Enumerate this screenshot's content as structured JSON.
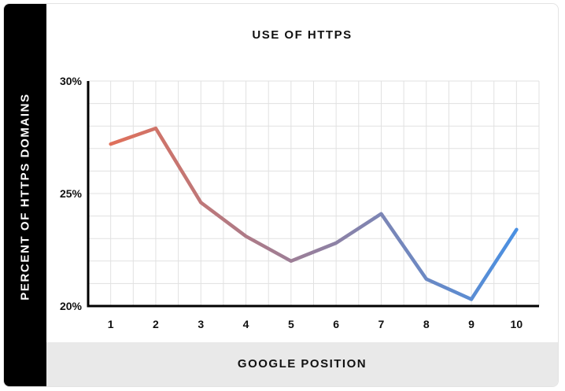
{
  "chart_data": {
    "type": "line",
    "title": "USE OF HTTPS",
    "xlabel": "GOOGLE POSITION",
    "ylabel": "PERCENT OF HTTPS DOMAINS",
    "x": [
      1,
      2,
      3,
      4,
      5,
      6,
      7,
      8,
      9,
      10
    ],
    "series": [
      {
        "values": [
          27.2,
          27.9,
          24.6,
          23.1,
          22.0,
          22.8,
          24.1,
          21.2,
          20.3,
          23.4
        ]
      }
    ],
    "ylim": [
      20,
      30
    ],
    "yticks": [
      "20%",
      "25%",
      "30%"
    ],
    "xticks": [
      "1",
      "2",
      "3",
      "4",
      "5",
      "6",
      "7",
      "8",
      "9",
      "10"
    ],
    "grid": true,
    "line_gradient": [
      "#e0705a",
      "#4a90e2"
    ]
  }
}
